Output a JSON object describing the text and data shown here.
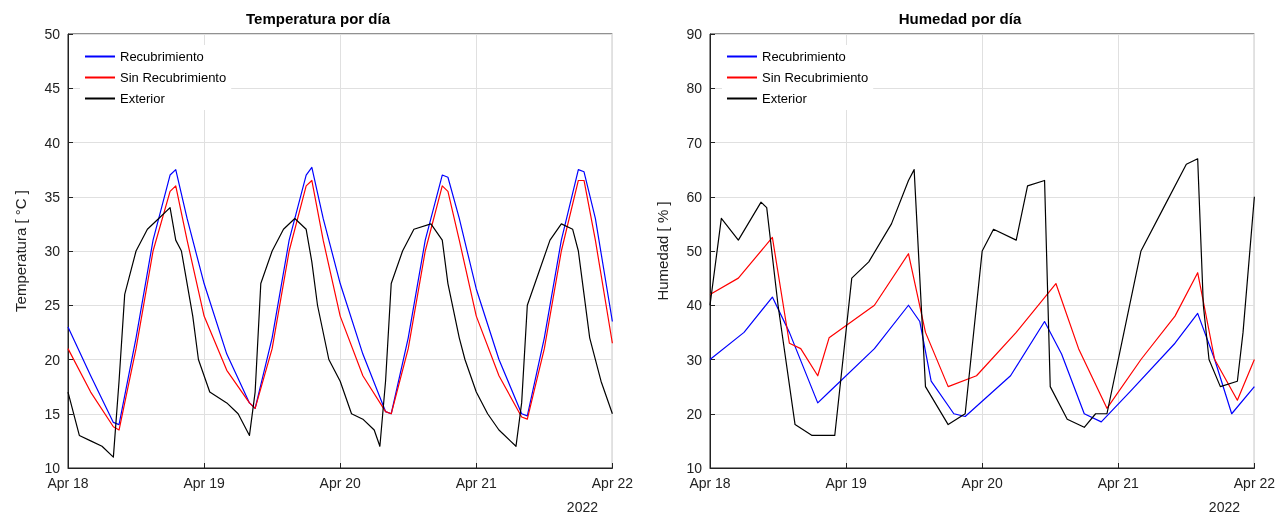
{
  "chart_data": [
    {
      "type": "line",
      "title": "Temperatura por día",
      "ylabel": "Temperatura [ °C ]",
      "xlim": [
        "2022-04-18",
        "2022-04-22"
      ],
      "xticks": [
        {
          "value": "2022-04-18",
          "label": "Apr 18"
        },
        {
          "value": "2022-04-19",
          "label": "Apr 19"
        },
        {
          "value": "2022-04-20",
          "label": "Apr 20"
        },
        {
          "value": "2022-04-21",
          "label": "Apr 21"
        },
        {
          "value": "2022-04-22",
          "label": "Apr 22"
        }
      ],
      "ylim": [
        10,
        50
      ],
      "yticks": [
        10,
        15,
        20,
        25,
        30,
        35,
        40,
        45,
        50
      ],
      "grid": true,
      "legend": "top left",
      "line_style": "solid",
      "marker": "none",
      "annotations": [
        "2022"
      ],
      "series": [
        {
          "name": "Recubrimiento",
          "color": "#0000ff",
          "x": [
            "2022-04-18T00:00",
            "2022-04-18T04:00",
            "2022-04-18T08:00",
            "2022-04-18T09:00",
            "2022-04-18T12:00",
            "2022-04-18T15:00",
            "2022-04-18T18:00",
            "2022-04-18T19:00",
            "2022-04-18T21:00",
            "2022-04-19T00:00",
            "2022-04-19T04:00",
            "2022-04-19T08:00",
            "2022-04-19T09:00",
            "2022-04-19T12:00",
            "2022-04-19T15:00",
            "2022-04-19T18:00",
            "2022-04-19T19:00",
            "2022-04-19T21:00",
            "2022-04-20T00:00",
            "2022-04-20T04:00",
            "2022-04-20T08:00",
            "2022-04-20T09:00",
            "2022-04-20T12:00",
            "2022-04-20T15:00",
            "2022-04-20T18:00",
            "2022-04-20T19:00",
            "2022-04-20T21:00",
            "2022-04-21T00:00",
            "2022-04-21T04:00",
            "2022-04-21T08:00",
            "2022-04-21T09:00",
            "2022-04-21T12:00",
            "2022-04-21T15:00",
            "2022-04-21T18:00",
            "2022-04-21T19:00",
            "2022-04-21T21:00",
            "2022-04-22T00:00"
          ],
          "values": [
            23,
            18.5,
            14.2,
            14,
            22,
            31,
            37,
            37.5,
            33,
            27,
            20.5,
            16,
            15.5,
            22,
            31,
            37,
            37.7,
            33,
            27,
            20.5,
            15.2,
            15,
            22,
            31,
            37,
            36.8,
            33,
            26.5,
            20,
            15,
            14.8,
            22,
            31,
            37.5,
            37.3,
            33,
            23.5
          ]
        },
        {
          "name": "Sin Recubrimiento",
          "color": "#ff0000",
          "x": [
            "2022-04-18T00:00",
            "2022-04-18T04:00",
            "2022-04-18T08:00",
            "2022-04-18T09:00",
            "2022-04-18T12:00",
            "2022-04-18T15:00",
            "2022-04-18T18:00",
            "2022-04-18T19:00",
            "2022-04-18T21:00",
            "2022-04-19T00:00",
            "2022-04-19T04:00",
            "2022-04-19T08:00",
            "2022-04-19T09:00",
            "2022-04-19T12:00",
            "2022-04-19T15:00",
            "2022-04-19T18:00",
            "2022-04-19T19:00",
            "2022-04-19T21:00",
            "2022-04-20T00:00",
            "2022-04-20T04:00",
            "2022-04-20T08:00",
            "2022-04-20T09:00",
            "2022-04-20T12:00",
            "2022-04-20T15:00",
            "2022-04-20T18:00",
            "2022-04-20T19:00",
            "2022-04-20T21:00",
            "2022-04-21T00:00",
            "2022-04-21T04:00",
            "2022-04-21T08:00",
            "2022-04-21T09:00",
            "2022-04-21T12:00",
            "2022-04-21T15:00",
            "2022-04-21T18:00",
            "2022-04-21T19:00",
            "2022-04-21T21:00",
            "2022-04-22T00:00"
          ],
          "values": [
            21,
            17,
            13.8,
            13.5,
            21,
            30,
            35.5,
            36,
            31,
            24,
            19,
            16,
            15.5,
            21,
            30,
            36,
            36.5,
            31,
            24,
            18.5,
            15.2,
            15,
            21,
            30,
            36,
            35.5,
            31,
            24,
            18.5,
            14.7,
            14.5,
            21,
            30,
            36.5,
            36.5,
            31,
            21.5
          ]
        },
        {
          "name": "Exterior",
          "color": "#000000",
          "x": [
            "2022-04-18T00:00",
            "2022-04-18T02:00",
            "2022-04-18T04:00",
            "2022-04-18T06:00",
            "2022-04-18T08:00",
            "2022-04-18T09:00",
            "2022-04-18T10:00",
            "2022-04-18T12:00",
            "2022-04-18T14:00",
            "2022-04-18T16:00",
            "2022-04-18T18:00",
            "2022-04-18T19:00",
            "2022-04-18T20:00",
            "2022-04-18T22:00",
            "2022-04-18T23:00",
            "2022-04-19T01:00",
            "2022-04-19T04:00",
            "2022-04-19T06:00",
            "2022-04-19T08:00",
            "2022-04-19T09:00",
            "2022-04-19T10:00",
            "2022-04-19T12:00",
            "2022-04-19T14:00",
            "2022-04-19T16:00",
            "2022-04-19T18:00",
            "2022-04-19T19:00",
            "2022-04-19T20:00",
            "2022-04-19T22:00",
            "2022-04-20T00:00",
            "2022-04-20T02:00",
            "2022-04-20T04:00",
            "2022-04-20T06:00",
            "2022-04-20T07:00",
            "2022-04-20T08:00",
            "2022-04-20T09:00",
            "2022-04-20T11:00",
            "2022-04-20T13:00",
            "2022-04-20T16:00",
            "2022-04-20T18:00",
            "2022-04-20T19:00",
            "2022-04-20T21:00",
            "2022-04-20T22:00",
            "2022-04-21T00:00",
            "2022-04-21T02:00",
            "2022-04-21T04:00",
            "2022-04-21T06:00",
            "2022-04-21T07:00",
            "2022-04-21T08:00",
            "2022-04-21T09:00",
            "2022-04-21T11:00",
            "2022-04-21T13:00",
            "2022-04-21T15:00",
            "2022-04-21T17:00",
            "2022-04-21T18:00",
            "2022-04-21T19:00",
            "2022-04-21T20:00",
            "2022-04-21T22:00",
            "2022-04-22T00:00"
          ],
          "values": [
            17,
            13,
            12.5,
            12,
            11,
            18,
            26,
            30,
            32,
            33,
            34,
            31,
            30,
            24,
            20,
            17,
            16,
            15,
            13,
            17,
            27,
            30,
            32,
            33,
            32,
            29,
            25,
            20,
            18,
            15,
            14.5,
            13.5,
            12,
            18,
            27,
            30,
            32,
            32.5,
            31,
            27,
            22,
            20,
            17,
            15,
            13.5,
            12.5,
            12,
            16,
            25,
            28,
            31,
            32.5,
            32,
            30,
            26,
            22,
            18,
            15
          ]
        }
      ]
    },
    {
      "type": "line",
      "title": "Humedad por día",
      "ylabel": "Humedad [ % ]",
      "xlim": [
        "2022-04-18",
        "2022-04-22"
      ],
      "xticks": [
        {
          "value": "2022-04-18",
          "label": "Apr 18"
        },
        {
          "value": "2022-04-19",
          "label": "Apr 19"
        },
        {
          "value": "2022-04-20",
          "label": "Apr 20"
        },
        {
          "value": "2022-04-21",
          "label": "Apr 21"
        },
        {
          "value": "2022-04-22",
          "label": "Apr 22"
        }
      ],
      "ylim": [
        10,
        90
      ],
      "yticks": [
        10,
        20,
        30,
        40,
        50,
        60,
        70,
        80,
        90
      ],
      "grid": true,
      "legend": "top left",
      "line_style": "solid",
      "marker": "none",
      "annotations": [
        "2022"
      ],
      "series": [
        {
          "name": "Recubrimiento",
          "color": "#0000ff",
          "x": [
            "2022-04-18T00:00",
            "2022-04-18T06:00",
            "2022-04-18T11:00",
            "2022-04-18T14:00",
            "2022-04-18T19:00",
            "2022-04-18T21:00",
            "2022-04-19T05:00",
            "2022-04-19T11:00",
            "2022-04-19T13:00",
            "2022-04-19T15:00",
            "2022-04-19T19:00",
            "2022-04-19T21:00",
            "2022-04-20T05:00",
            "2022-04-20T11:00",
            "2022-04-20T14:00",
            "2022-04-20T18:00",
            "2022-04-20T21:00",
            "2022-04-21T02:00",
            "2022-04-21T10:00",
            "2022-04-21T14:00",
            "2022-04-21T17:00",
            "2022-04-21T20:00",
            "2022-04-22T00:00"
          ],
          "values": [
            30,
            35,
            41.5,
            35,
            22,
            24,
            32,
            40,
            37,
            26,
            20,
            19.5,
            27,
            37,
            31,
            20,
            18.5,
            24,
            33,
            38.5,
            30,
            20,
            25
          ]
        },
        {
          "name": "Sin Recubrimiento",
          "color": "#ff0000",
          "x": [
            "2022-04-18T00:00",
            "2022-04-18T05:00",
            "2022-04-18T11:00",
            "2022-04-18T14:00",
            "2022-04-18T16:00",
            "2022-04-18T19:00",
            "2022-04-18T21:00",
            "2022-04-19T05:00",
            "2022-04-19T11:00",
            "2022-04-19T14:00",
            "2022-04-19T18:00",
            "2022-04-19T23:00",
            "2022-04-20T06:00",
            "2022-04-20T13:00",
            "2022-04-20T17:00",
            "2022-04-20T22:00",
            "2022-04-21T04:00",
            "2022-04-21T10:00",
            "2022-04-21T14:00",
            "2022-04-21T17:00",
            "2022-04-21T21:00",
            "2022-04-22T00:00"
          ],
          "values": [
            42,
            45,
            52.5,
            33,
            32,
            27,
            34,
            40,
            49.5,
            35,
            25,
            27,
            35,
            44,
            32,
            21,
            30,
            38,
            46,
            30,
            22.5,
            30
          ]
        },
        {
          "name": "Exterior",
          "color": "#000000",
          "x": [
            "2022-04-18T00:00",
            "2022-04-18T02:00",
            "2022-04-18T05:00",
            "2022-04-18T09:00",
            "2022-04-18T10:00",
            "2022-04-18T12:00",
            "2022-04-18T15:00",
            "2022-04-18T18:00",
            "2022-04-18T22:00",
            "2022-04-19T01:00",
            "2022-04-19T04:00",
            "2022-04-19T08:00",
            "2022-04-19T11:00",
            "2022-04-19T12:00",
            "2022-04-19T14:00",
            "2022-04-19T18:00",
            "2022-04-19T21:00",
            "2022-04-20T00:00",
            "2022-04-20T02:00",
            "2022-04-20T06:00",
            "2022-04-20T08:00",
            "2022-04-20T11:00",
            "2022-04-20T12:00",
            "2022-04-20T15:00",
            "2022-04-20T18:00",
            "2022-04-20T20:00",
            "2022-04-20T22:00",
            "2022-04-21T01:00",
            "2022-04-21T04:00",
            "2022-04-21T08:00",
            "2022-04-21T12:00",
            "2022-04-21T14:00",
            "2022-04-21T15:00",
            "2022-04-21T16:00",
            "2022-04-21T18:00",
            "2022-04-21T21:00",
            "2022-04-21T22:00",
            "2022-04-22T00:00"
          ],
          "values": [
            40,
            56,
            52,
            59,
            58,
            40,
            18,
            16,
            16,
            45,
            48,
            55,
            63,
            65,
            25,
            18,
            20,
            50,
            54,
            52,
            62,
            63,
            25,
            19,
            17.5,
            20,
            20,
            35,
            50,
            58,
            66,
            67,
            40,
            30,
            25,
            26,
            35,
            60
          ]
        }
      ]
    }
  ]
}
